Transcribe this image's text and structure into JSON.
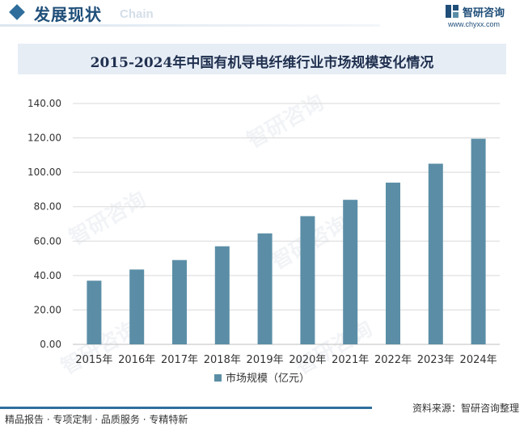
{
  "header": {
    "section_title": "发展现状",
    "section_subtitle": "Chain",
    "brand_name": "智研咨询",
    "brand_url": "www.chyxx.com"
  },
  "watermark_text": "智研咨询",
  "chart_data": {
    "type": "bar",
    "title": "2015-2024年中国有机导电纤维行业市场规模变化情况",
    "categories": [
      "2015年",
      "2016年",
      "2017年",
      "2018年",
      "2019年",
      "2020年",
      "2021年",
      "2022年",
      "2023年",
      "2024年"
    ],
    "series": [
      {
        "name": "市场规模（亿元）",
        "color": "#5b8ea6",
        "values": [
          37,
          43.5,
          49,
          57,
          64.5,
          74.5,
          84,
          94,
          105,
          119.5
        ]
      }
    ],
    "ylim": [
      0,
      140
    ],
    "yticks": [
      "0.00",
      "20.00",
      "40.00",
      "60.00",
      "80.00",
      "100.00",
      "120.00",
      "140.00"
    ],
    "grid": true,
    "legend_position": "bottom"
  },
  "footer": {
    "left": "精品报告 · 专项定制 · 品质服务 · 专精特新",
    "right": "资料来源：智研咨询整理"
  },
  "colors": {
    "accent": "#1f4e79",
    "bar": "#5b8ea6",
    "band": "#e6edf5"
  }
}
